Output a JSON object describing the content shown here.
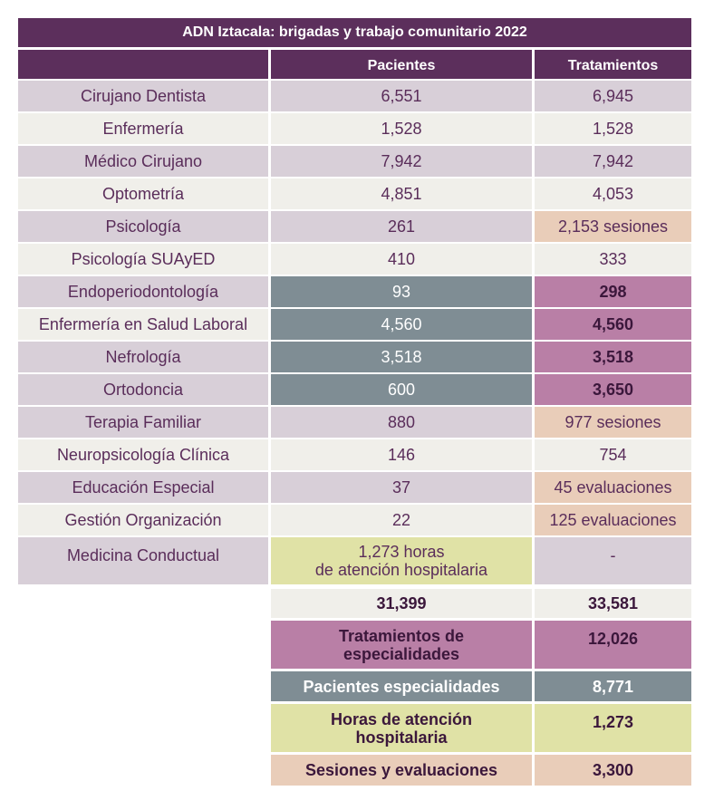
{
  "title": "ADN Iztacala: brigadas y trabajo comunitario   2022",
  "headers": {
    "col0": "",
    "col1": "Pacientes",
    "col2": "Tratamientos"
  },
  "rows": [
    {
      "label": "Cirujano Dentista",
      "pacientes": "6,551",
      "tratamientos": "6,945"
    },
    {
      "label": "Enfermería",
      "pacientes": "1,528",
      "tratamientos": "1,528"
    },
    {
      "label": "Médico Cirujano",
      "pacientes": "7,942",
      "tratamientos": "7,942"
    },
    {
      "label": "Optometría",
      "pacientes": "4,851",
      "tratamientos": "4,053"
    },
    {
      "label": "Psicología",
      "pacientes": "261",
      "tratamientos": "2,153 sesiones"
    },
    {
      "label": "Psicología SUAyED",
      "pacientes": "410",
      "tratamientos": "333"
    },
    {
      "label": "Endoperiodontología",
      "pacientes": "93",
      "tratamientos": "298"
    },
    {
      "label": "Enfermería en Salud Laboral",
      "pacientes": "4,560",
      "tratamientos": "4,560"
    },
    {
      "label": "Nefrología",
      "pacientes": "3,518",
      "tratamientos": "3,518"
    },
    {
      "label": "Ortodoncia",
      "pacientes": "600",
      "tratamientos": "3,650"
    },
    {
      "label": "Terapia Familiar",
      "pacientes": "880",
      "tratamientos": "977 sesiones"
    },
    {
      "label": "Neuropsicología Clínica",
      "pacientes": "146",
      "tratamientos": "754"
    },
    {
      "label": "Educación Especial",
      "pacientes": "37",
      "tratamientos": "45 evaluaciones"
    },
    {
      "label": "Gestión Organización",
      "pacientes": "22",
      "tratamientos": "125 evaluaciones"
    },
    {
      "label": "Medicina Conductual",
      "pacientes_line1": "1,273 horas",
      "pacientes_line2": "de atención hospitalaria",
      "tratamientos": "-"
    }
  ],
  "totals": {
    "pacientes": "31,399",
    "tratamientos": "33,581"
  },
  "summary": [
    {
      "line1": "Tratamientos  de",
      "line2": "especialidades",
      "value": "12,026"
    },
    {
      "line1": "Pacientes especialidades",
      "line2": "",
      "value": "8,771"
    },
    {
      "line1": "Horas de atención",
      "line2": "hospitalaria",
      "value": "1,273"
    },
    {
      "line1": "Sesiones y evaluaciones",
      "line2": "",
      "value": "3,300"
    }
  ],
  "colors": {
    "header": "#5c2f5c",
    "lavender": "#d8cfd8",
    "offwhite": "#f0efea",
    "slate": "#7f8d94",
    "mauve": "#b97fa6",
    "peach": "#e9cdb9",
    "lime": "#e0e2a6"
  }
}
